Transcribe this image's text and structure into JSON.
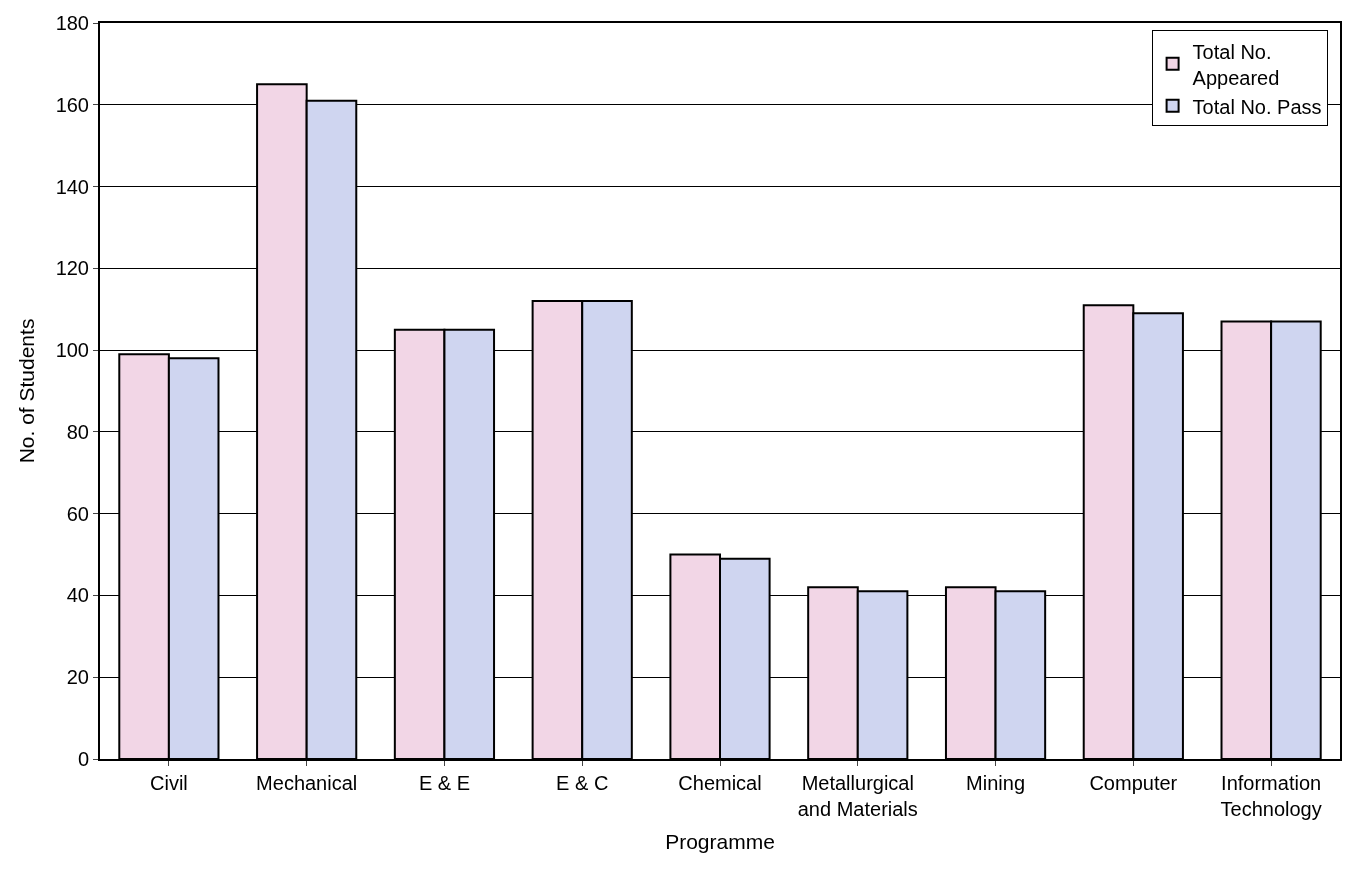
{
  "chart_data": {
    "type": "bar",
    "xlabel": "Programme",
    "ylabel": "No. of Students",
    "categories": [
      "Civil",
      "Mechanical",
      "E & E",
      "E & C",
      "Chemical",
      "Metallurgical\nand Materials",
      "Mining",
      "Computer",
      "Information\nTechnology"
    ],
    "series": [
      {
        "name": "Total No.\nAppeared",
        "color": "#f2d6e6",
        "values": [
          99,
          165,
          105,
          112,
          50,
          42,
          42,
          111,
          107
        ]
      },
      {
        "name": "Total No. Pass",
        "color": "#cfd5f0",
        "values": [
          98,
          161,
          105,
          112,
          49,
          41,
          41,
          109,
          107
        ]
      }
    ],
    "ylim": [
      0,
      180
    ],
    "yticks": [
      0,
      20,
      40,
      60,
      80,
      100,
      120,
      140,
      160,
      180
    ],
    "grid": "y",
    "legend": "top right"
  }
}
